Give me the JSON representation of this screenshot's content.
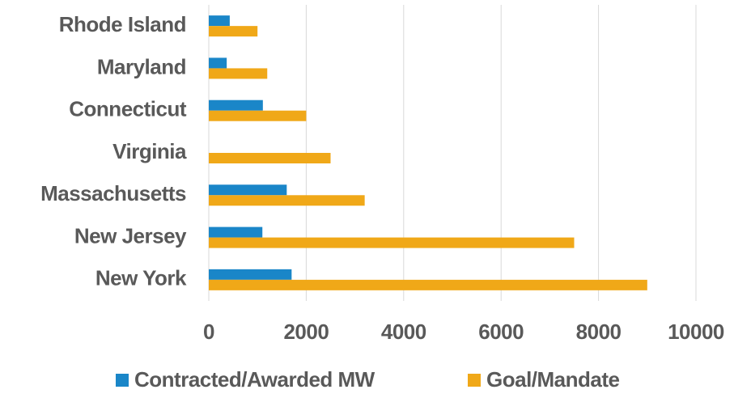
{
  "chart_data": {
    "type": "bar",
    "orientation": "horizontal",
    "categories": [
      "Rhode Island",
      "Maryland",
      "Connecticut",
      "Virginia",
      "Massachusetts",
      "New Jersey",
      "New York"
    ],
    "series": [
      {
        "name": "Contracted/Awarded MW",
        "color": "#1a86c8",
        "values": [
          430,
          368,
          1110,
          0,
          1600,
          1100,
          1700
        ]
      },
      {
        "name": "Goal/Mandate",
        "color": "#f0a818",
        "values": [
          1000,
          1200,
          2000,
          2500,
          3200,
          7500,
          9000
        ]
      }
    ],
    "xlim": [
      0,
      10000
    ],
    "xticks": [
      0,
      2000,
      4000,
      6000,
      8000,
      10000
    ],
    "grid": true,
    "legend": "bottom"
  }
}
